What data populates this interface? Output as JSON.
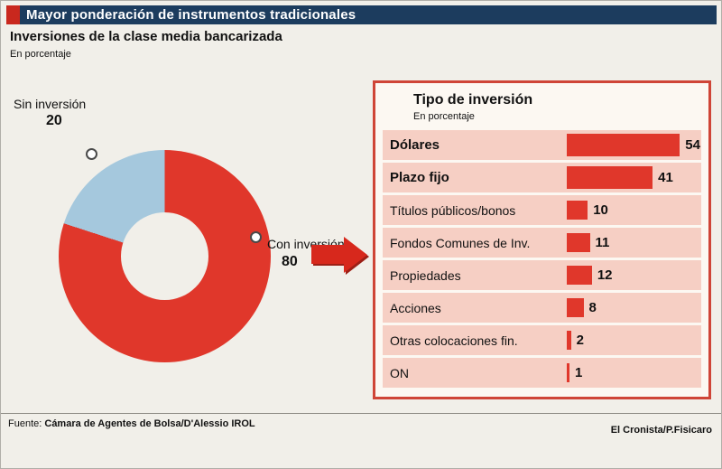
{
  "header": {
    "title": "Mayor ponderación de instrumentos tradicionales"
  },
  "subtitle": "Inversiones de la clase media bancarizada",
  "unit_label": "En porcentaje",
  "donut": {
    "segments": [
      {
        "label": "Con inversión",
        "value": 80,
        "color": "#e0372b"
      },
      {
        "label": "Sin inversión",
        "value": 20,
        "color": "#a5c8dd"
      }
    ]
  },
  "panel": {
    "title": "Tipo de inversión",
    "subtitle": "En porcentaje",
    "bar_color": "#e0372b",
    "row_bg": "#f6cfc4",
    "rows": [
      {
        "label": "Dólares",
        "value": 54,
        "bold": true
      },
      {
        "label": "Plazo fijo",
        "value": 41,
        "bold": true
      },
      {
        "label": "Títulos públicos/bonos",
        "value": 10,
        "bold": false
      },
      {
        "label": "Fondos Comunes de Inv.",
        "value": 11,
        "bold": false
      },
      {
        "label": "Propiedades",
        "value": 12,
        "bold": false
      },
      {
        "label": "Acciones",
        "value": 8,
        "bold": false
      },
      {
        "label": "Otras colocaciones fin.",
        "value": 2,
        "bold": false
      },
      {
        "label": "ON",
        "value": 1,
        "bold": false
      }
    ]
  },
  "footer": {
    "source_prefix": "Fuente:",
    "source": "Cámara de Agentes de Bolsa/D'Alessio IROL",
    "credit": "El Cronista/P.Fisicaro"
  },
  "colors": {
    "header_navy": "#1c3c5e",
    "header_red": "#c9281e",
    "accent_red": "#e0372b",
    "donut_blue": "#a5c8dd",
    "panel_border": "#cf4537"
  },
  "chart_data": [
    {
      "type": "pie",
      "title": "Inversiones de la clase media bancarizada",
      "unit": "En porcentaje",
      "labels": [
        "Con inversión",
        "Sin inversión"
      ],
      "values": [
        80,
        20
      ],
      "colors": [
        "#e0372b",
        "#a5c8dd"
      ],
      "style": "donut"
    },
    {
      "type": "bar",
      "title": "Tipo de inversión",
      "unit": "En porcentaje",
      "orientation": "horizontal",
      "categories": [
        "Dólares",
        "Plazo fijo",
        "Títulos públicos/bonos",
        "Fondos Comunes de Inv.",
        "Propiedades",
        "Acciones",
        "Otras colocaciones fin.",
        "ON"
      ],
      "values": [
        54,
        41,
        10,
        11,
        12,
        8,
        2,
        1
      ],
      "xlim": [
        0,
        60
      ],
      "grid": false,
      "legend": "none"
    }
  ]
}
